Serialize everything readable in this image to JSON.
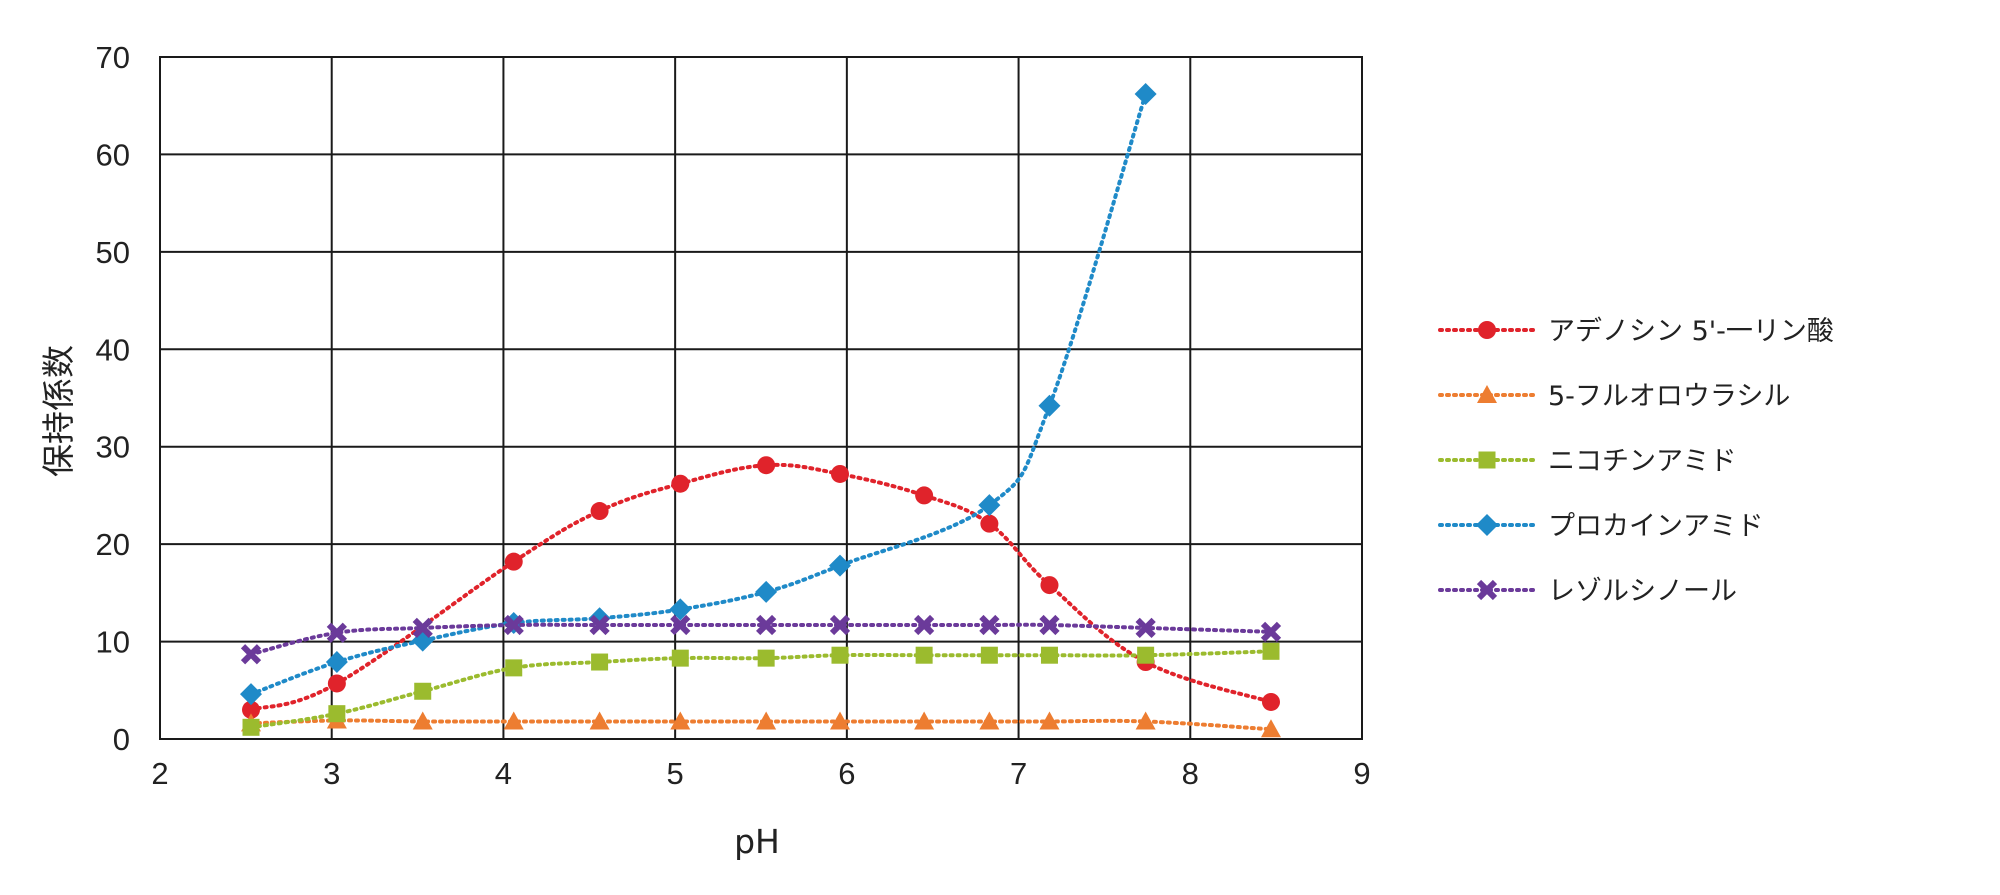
{
  "chart_data": {
    "type": "line",
    "xlabel": "pH",
    "ylabel": "保持係数",
    "xlim": [
      2,
      9
    ],
    "ylim": [
      0,
      70
    ],
    "xticks": [
      "2",
      "3",
      "4",
      "5",
      "6",
      "7",
      "8",
      "9"
    ],
    "yticks": [
      "0",
      "10",
      "20",
      "30",
      "40",
      "50",
      "60",
      "70"
    ],
    "grid": true,
    "legend_position": "right",
    "line_style": "dotted",
    "series": [
      {
        "name": "アデノシン 5'-一リン酸",
        "color": "#e0232b",
        "marker": "circle",
        "x": [
          2.53,
          3.03,
          4.06,
          4.56,
          5.03,
          5.53,
          5.96,
          6.45,
          6.83,
          7.18,
          7.74,
          8.47
        ],
        "y": [
          3.0,
          5.7,
          18.2,
          23.4,
          26.2,
          28.1,
          27.2,
          25.0,
          22.1,
          15.8,
          7.9,
          3.8
        ]
      },
      {
        "name": "5-フルオロウラシル",
        "color": "#ed7d31",
        "marker": "triangle",
        "x": [
          2.53,
          3.03,
          3.53,
          4.06,
          4.56,
          5.03,
          5.53,
          5.96,
          6.45,
          6.83,
          7.18,
          7.74,
          8.47
        ],
        "y": [
          1.6,
          1.9,
          1.8,
          1.8,
          1.8,
          1.8,
          1.8,
          1.8,
          1.8,
          1.8,
          1.8,
          1.8,
          1.0
        ]
      },
      {
        "name": "ニコチンアミド",
        "color": "#9bbb2e",
        "marker": "square",
        "x": [
          2.53,
          3.03,
          3.53,
          4.06,
          4.56,
          5.03,
          5.53,
          5.96,
          6.45,
          6.83,
          7.18,
          7.74,
          8.47
        ],
        "y": [
          1.2,
          2.6,
          4.9,
          7.3,
          7.9,
          8.3,
          8.3,
          8.6,
          8.6,
          8.6,
          8.6,
          8.6,
          9.0
        ]
      },
      {
        "name": "プロカインアミド",
        "color": "#1f8ac8",
        "marker": "diamond",
        "x": [
          2.53,
          3.03,
          3.53,
          4.06,
          4.56,
          5.03,
          5.53,
          5.96,
          6.83,
          7.18,
          7.74
        ],
        "y": [
          4.6,
          7.9,
          10.1,
          11.9,
          12.4,
          13.3,
          15.1,
          17.8,
          24.0,
          34.2,
          66.2
        ]
      },
      {
        "name": "レゾルシノール",
        "color": "#6b3a9a",
        "marker": "x",
        "x": [
          2.53,
          3.03,
          3.53,
          4.06,
          4.56,
          5.03,
          5.53,
          5.96,
          6.45,
          6.83,
          7.18,
          7.74,
          8.47
        ],
        "y": [
          8.7,
          10.9,
          11.4,
          11.7,
          11.7,
          11.7,
          11.7,
          11.7,
          11.7,
          11.7,
          11.7,
          11.4,
          11.0
        ]
      }
    ]
  }
}
